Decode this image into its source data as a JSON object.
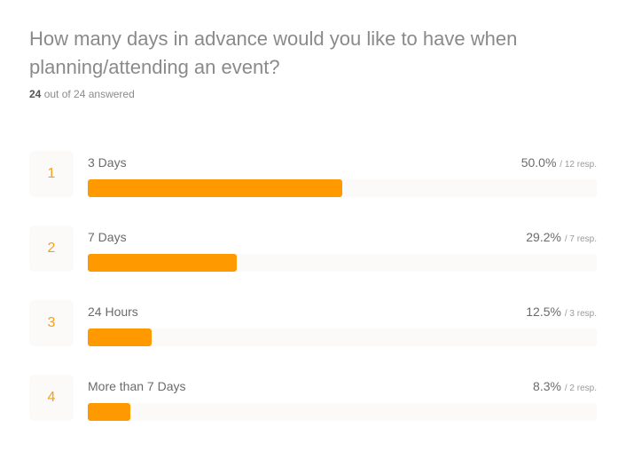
{
  "question": {
    "title": "How many days in advance would you like to have when planning/attending an event?",
    "answered_count": "24",
    "answered_suffix": "out of 24 answered"
  },
  "colors": {
    "bar": "#ff9900",
    "rank": "#f5a01a",
    "track": "#fbfaf8"
  },
  "chart_data": {
    "type": "bar",
    "orientation": "horizontal",
    "categories": [
      "3 Days",
      "7 Days",
      "24 Hours",
      "More than 7 Days"
    ],
    "values": [
      50.0,
      29.2,
      12.5,
      8.3
    ],
    "responses": [
      12,
      7,
      3,
      2
    ],
    "ranks": [
      "1",
      "2",
      "3",
      "4"
    ],
    "percent_labels": [
      "50.0%",
      "29.2%",
      "12.5%",
      "8.3%"
    ],
    "response_labels": [
      "/ 12 resp.",
      "/ 7 resp.",
      "/ 3 resp.",
      "/ 2 resp."
    ],
    "xlim": [
      0,
      100
    ]
  }
}
